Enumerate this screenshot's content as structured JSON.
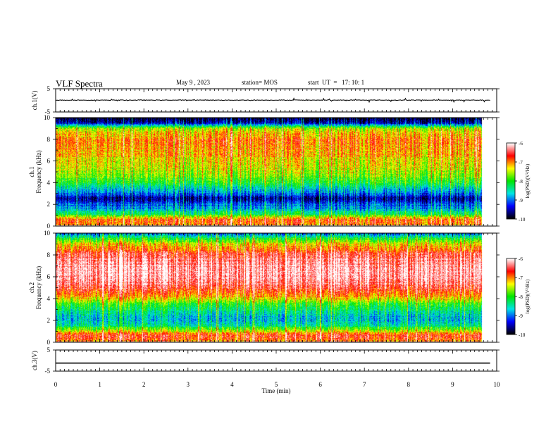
{
  "header": {
    "title": "VLF Spectra",
    "date": "May 9 , 2023",
    "station": "station= MOS",
    "start": "start  UT  =   17: 10: 1"
  },
  "colors": {
    "colormap": [
      "#000000",
      "#0000ff",
      "#00e5e5",
      "#00e600",
      "#ffff00",
      "#ff0000",
      "#ffffff"
    ]
  },
  "chart_data": [
    {
      "type": "line",
      "panel": "ch1 waveform",
      "ylabel": "ch.1(V)",
      "yticks": [
        "5",
        "-5"
      ],
      "ylim": [
        -5,
        5
      ],
      "x": [
        0,
        1,
        2,
        3,
        4,
        5,
        6,
        7,
        8,
        9,
        9.85
      ],
      "values": [
        0.1,
        0.1,
        0.1,
        0.1,
        0.1,
        0.1,
        0.1,
        0.1,
        0.1,
        0.1,
        0.1
      ]
    },
    {
      "type": "heatmap",
      "panel": "ch1 spectrogram",
      "ylabel": "ch.1\nFrequency (kHz)",
      "ylabel_line1": "ch.1",
      "ylabel_line2": "Frequency (kHz)",
      "ylim": [
        0,
        10
      ],
      "yticks": [
        "0",
        "2",
        "4",
        "6",
        "8",
        "10"
      ],
      "xlim": [
        0,
        10
      ],
      "frequency_profile_khz": [
        0,
        0.5,
        1,
        1.5,
        2,
        2.5,
        3,
        3.5,
        4,
        5,
        6,
        7,
        8,
        9,
        9.5,
        10
      ],
      "log_psd_profile": [
        -7.0,
        -6.8,
        -8.2,
        -8.8,
        -9.2,
        -9.6,
        -9.0,
        -8.5,
        -8.0,
        -7.6,
        -7.3,
        -7.1,
        -7.0,
        -7.5,
        -9.5,
        -10.0
      ],
      "colorbar": {
        "label": "log(PSD)(V²/Hz)",
        "ticks": [
          "-6",
          "-7",
          "-8",
          "-9",
          "-10"
        ],
        "range": [
          -10,
          -6
        ]
      }
    },
    {
      "type": "heatmap",
      "panel": "ch2 spectrogram",
      "ylabel": "ch.2\nFrequency (kHz)",
      "ylabel_line1": "ch.2",
      "ylabel_line2": "Frequency (kHz)",
      "ylim": [
        0,
        10
      ],
      "yticks": [
        "0",
        "2",
        "4",
        "6",
        "8",
        "10"
      ],
      "xlim": [
        0,
        10
      ],
      "frequency_profile_khz": [
        0,
        0.5,
        1,
        1.5,
        2,
        2.5,
        3,
        3.5,
        4,
        5,
        6,
        7,
        8,
        9,
        9.5,
        10
      ],
      "log_psd_profile": [
        -7.0,
        -6.6,
        -7.5,
        -8.5,
        -8.8,
        -8.6,
        -8.3,
        -7.9,
        -7.2,
        -6.5,
        -6.2,
        -6.2,
        -6.5,
        -7.3,
        -8.0,
        -9.0
      ],
      "colorbar": {
        "label": "log(PSD)(V²/Hz)",
        "ticks": [
          "-6",
          "-7",
          "-8",
          "-9",
          "-10"
        ],
        "range": [
          -10,
          -6
        ]
      }
    },
    {
      "type": "line",
      "panel": "ch3 waveform",
      "ylabel": "ch.3(V)",
      "yticks": [
        "5",
        "-5"
      ],
      "ylim": [
        -5,
        5
      ],
      "x": [
        0,
        9.85
      ],
      "values": [
        -1.2,
        -1.2
      ]
    }
  ],
  "xaxis": {
    "label": "Time  (min)",
    "ticks": [
      "0",
      "1",
      "2",
      "3",
      "4",
      "5",
      "6",
      "7",
      "8",
      "9",
      "10"
    ],
    "xlim": [
      0,
      10
    ]
  }
}
